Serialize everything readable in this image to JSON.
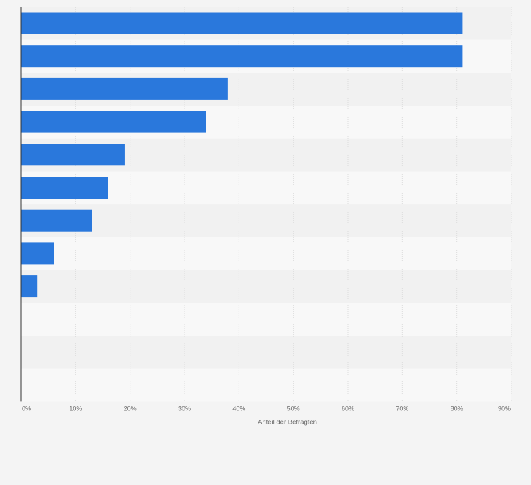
{
  "chart_data": {
    "type": "bar",
    "orientation": "horizontal",
    "categories": [
      "",
      "",
      "",
      "",
      "",
      "",
      "",
      "",
      "",
      "",
      "",
      ""
    ],
    "values": [
      81,
      81,
      38,
      34,
      19,
      16,
      13,
      6,
      3,
      0,
      0,
      0
    ],
    "xlabel": "Anteil der Befragten",
    "xlim": [
      0,
      90
    ],
    "xticks": [
      "0%",
      "10%",
      "20%",
      "30%",
      "40%",
      "50%",
      "60%",
      "70%",
      "80%",
      "90%"
    ],
    "grid": true,
    "colors": {
      "bar": "#2a78dc",
      "band_dark": "#f1f1f1",
      "band_light": "#f8f8f8",
      "grid": "#dcdcdc",
      "axis": "#333333",
      "background": "#f4f4f4"
    }
  }
}
